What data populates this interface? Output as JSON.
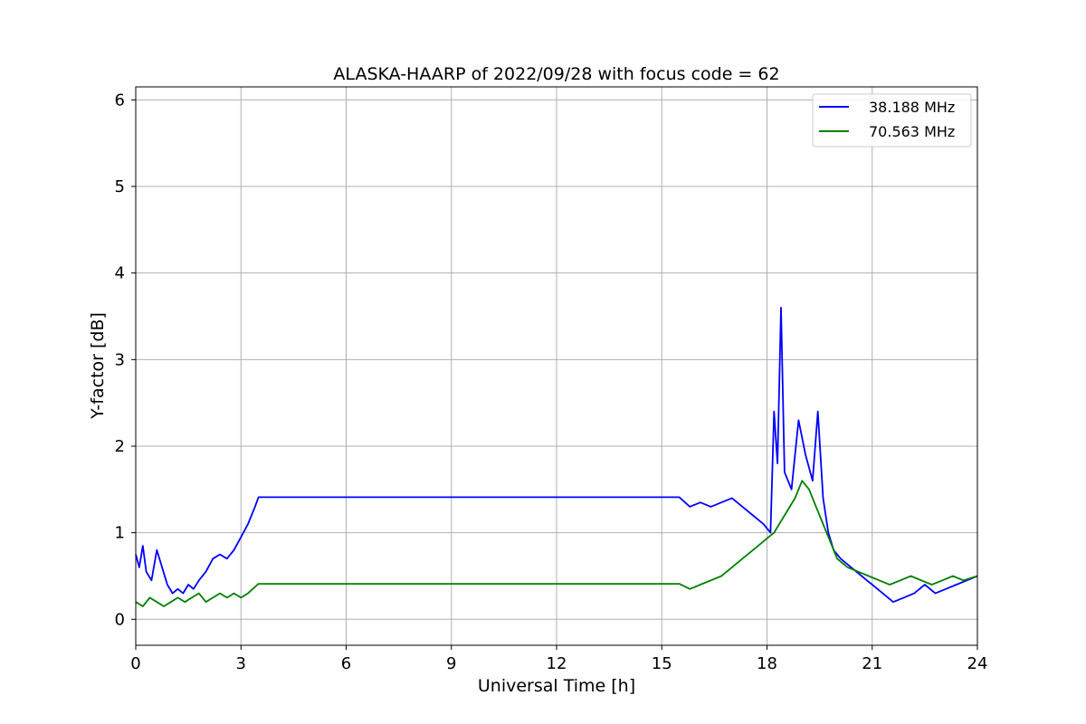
{
  "chart_data": {
    "type": "line",
    "title": "ALASKA-HAARP of 2022/09/28 with focus code = 62",
    "xlabel": "Universal Time [h]",
    "ylabel": "Y-factor [dB]",
    "xlim": [
      0,
      24
    ],
    "ylim": [
      -0.3,
      6.15
    ],
    "xticks": [
      0,
      3,
      6,
      9,
      12,
      15,
      18,
      21,
      24
    ],
    "yticks": [
      0,
      1,
      2,
      3,
      4,
      5,
      6
    ],
    "grid": true,
    "legend_position": "top-right",
    "series": [
      {
        "name": "38.188 MHz",
        "color": "#0000ff",
        "x": [
          0,
          0.1,
          0.2,
          0.3,
          0.45,
          0.6,
          0.75,
          0.9,
          1.05,
          1.2,
          1.35,
          1.5,
          1.65,
          1.8,
          2.0,
          2.2,
          2.4,
          2.6,
          2.8,
          3.0,
          3.2,
          3.4,
          3.5,
          15.5,
          15.8,
          16.1,
          16.4,
          16.7,
          17.0,
          17.3,
          17.6,
          17.9,
          18.1,
          18.2,
          18.3,
          18.4,
          18.5,
          18.7,
          18.9,
          19.1,
          19.3,
          19.45,
          19.6,
          19.75,
          19.9,
          20.1,
          20.4,
          20.7,
          20.85,
          21.0,
          21.3,
          21.6,
          21.9,
          22.2,
          22.5,
          22.8,
          23.1,
          23.4,
          23.7,
          24.0
        ],
        "y": [
          0.75,
          0.6,
          0.85,
          0.55,
          0.45,
          0.8,
          0.6,
          0.4,
          0.3,
          0.35,
          0.3,
          0.4,
          0.35,
          0.45,
          0.55,
          0.7,
          0.75,
          0.7,
          0.8,
          0.95,
          1.1,
          1.3,
          1.41,
          1.41,
          1.3,
          1.35,
          1.3,
          1.35,
          1.4,
          1.3,
          1.2,
          1.1,
          1.0,
          2.4,
          1.8,
          3.6,
          1.7,
          1.5,
          2.3,
          1.9,
          1.6,
          2.4,
          1.4,
          1.0,
          0.8,
          0.7,
          0.6,
          0.5,
          0.45,
          0.4,
          0.3,
          0.2,
          0.25,
          0.3,
          0.4,
          0.3,
          0.35,
          0.4,
          0.45,
          0.5
        ]
      },
      {
        "name": "70.563 MHz",
        "color": "#008000",
        "x": [
          0,
          0.2,
          0.4,
          0.6,
          0.8,
          1.0,
          1.2,
          1.4,
          1.6,
          1.8,
          2.0,
          2.2,
          2.4,
          2.6,
          2.8,
          3.0,
          3.2,
          3.5,
          15.5,
          15.8,
          16.1,
          16.4,
          16.7,
          17.0,
          17.3,
          17.6,
          17.9,
          18.2,
          18.5,
          18.8,
          19.0,
          19.2,
          19.4,
          19.6,
          19.8,
          20.0,
          20.3,
          20.6,
          20.9,
          21.2,
          21.5,
          21.8,
          22.1,
          22.4,
          22.7,
          23.0,
          23.3,
          23.6,
          24.0
        ],
        "y": [
          0.2,
          0.15,
          0.25,
          0.2,
          0.15,
          0.2,
          0.25,
          0.2,
          0.25,
          0.3,
          0.2,
          0.25,
          0.3,
          0.25,
          0.3,
          0.25,
          0.3,
          0.41,
          0.41,
          0.35,
          0.4,
          0.45,
          0.5,
          0.6,
          0.7,
          0.8,
          0.9,
          1.0,
          1.2,
          1.4,
          1.6,
          1.5,
          1.3,
          1.1,
          0.9,
          0.7,
          0.6,
          0.55,
          0.5,
          0.45,
          0.4,
          0.45,
          0.5,
          0.45,
          0.4,
          0.45,
          0.5,
          0.45,
          0.5
        ]
      }
    ]
  }
}
